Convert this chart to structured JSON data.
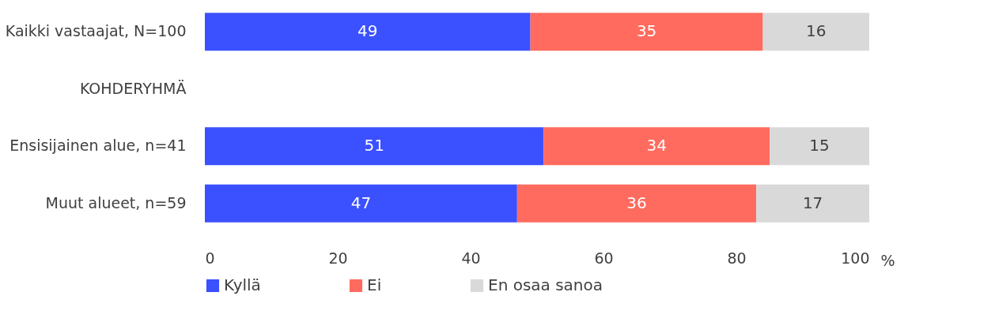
{
  "chart_data": {
    "type": "bar",
    "orientation": "horizontal",
    "stacked": true,
    "categories": [
      "Kaikki vastaajat, N=100",
      "KOHDERYHMÄ",
      "Ensisijainen alue, n=41",
      "Muut alueet, n=59"
    ],
    "series": [
      {
        "name": "Kyllä",
        "color": "#3b50ff",
        "values": [
          49,
          null,
          51,
          47
        ]
      },
      {
        "name": "Ei",
        "color": "#ff6b5e",
        "values": [
          35,
          null,
          34,
          36
        ]
      },
      {
        "name": "En osaa sanoa",
        "color": "#d9d9d9",
        "values": [
          16,
          null,
          15,
          17
        ]
      }
    ],
    "xlabel": "%",
    "xlim": [
      0,
      100
    ],
    "xticks": [
      0,
      20,
      40,
      60,
      80,
      100
    ],
    "data_labels": true,
    "grid": false,
    "legend": "bottom"
  }
}
